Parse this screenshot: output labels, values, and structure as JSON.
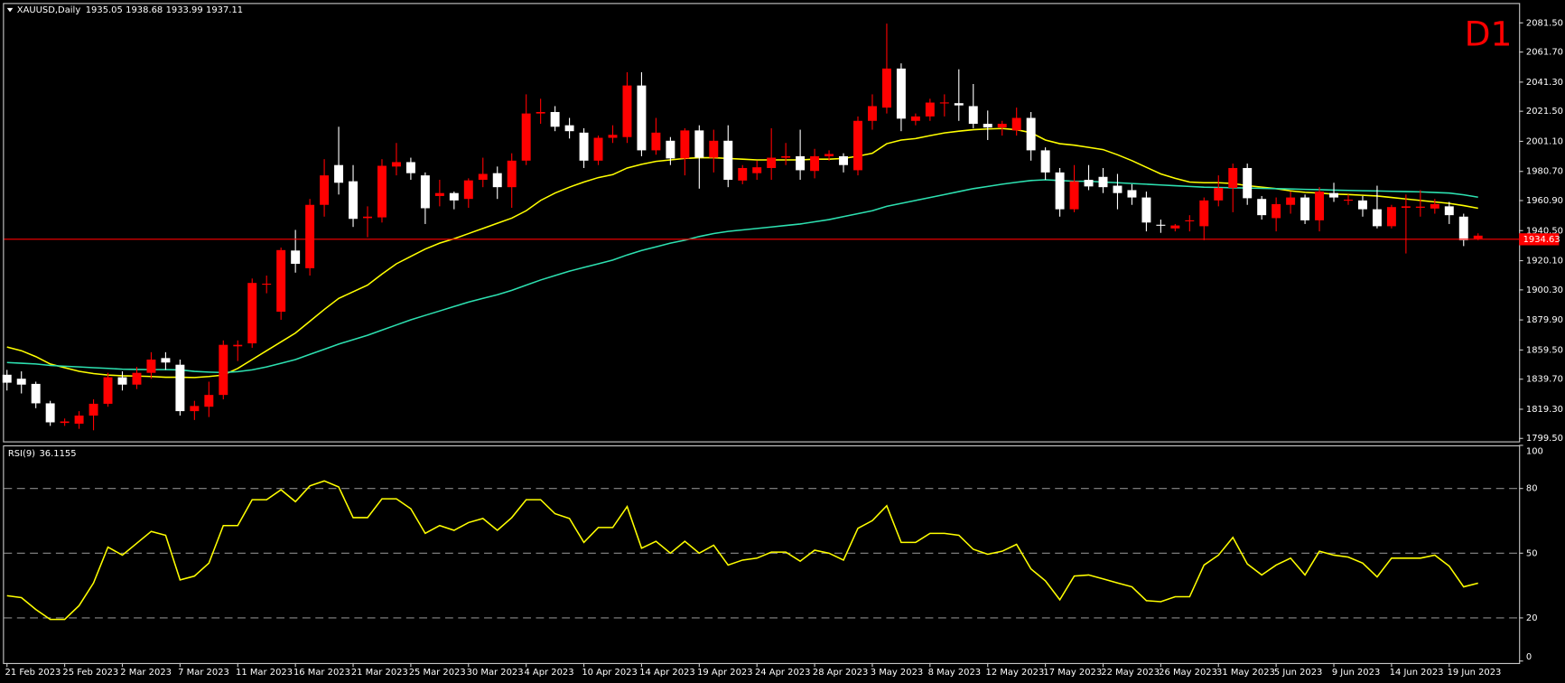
{
  "chart_data": [
    {
      "type": "candlestick",
      "symbol": "XAUUSD,Daily",
      "annotation": "D1",
      "annotation_color": "#ff0000",
      "categories": [
        "21 Feb 2023",
        null,
        null,
        null,
        "25 Feb 2023",
        null,
        null,
        null,
        "2 Mar 2023",
        null,
        null,
        null,
        "7 Mar 2023",
        null,
        null,
        null,
        "11 Mar 2023",
        null,
        null,
        null,
        "16 Mar 2023",
        null,
        null,
        null,
        "21 Mar 2023",
        null,
        null,
        null,
        "25 Mar 2023",
        null,
        null,
        null,
        "30 Mar 2023",
        null,
        null,
        null,
        "4 Apr 2023",
        null,
        null,
        null,
        "10 Apr 2023",
        null,
        null,
        null,
        "14 Apr 2023",
        null,
        null,
        null,
        "19 Apr 2023",
        null,
        null,
        null,
        "24 Apr 2023",
        null,
        null,
        null,
        "28 Apr 2023",
        null,
        null,
        null,
        "3 May 2023",
        null,
        null,
        null,
        "8 May 2023",
        null,
        null,
        null,
        "12 May 2023",
        null,
        null,
        null,
        "17 May 2023",
        null,
        null,
        null,
        "22 May 2023",
        null,
        null,
        null,
        "26 May 2023",
        null,
        null,
        null,
        "31 May 2023",
        null,
        null,
        null,
        "5 Jun 2023",
        null,
        null,
        null,
        "9 Jun 2023",
        null,
        null,
        null,
        "14 Jun 2023",
        null,
        null,
        null,
        "19 Jun 2023",
        null,
        null
      ],
      "open": [
        1842.7,
        1840,
        1836.5,
        1823.3,
        1810,
        1809.5,
        1815,
        1823,
        1841,
        1836,
        1844,
        1854,
        1849.5,
        1818,
        1821,
        1829,
        1862,
        1864,
        1904,
        1885.5,
        1927,
        1915,
        1958,
        1985,
        1974,
        1949,
        1949.5,
        1984,
        1987,
        1978,
        1964,
        1966,
        1962,
        1975,
        1979.5,
        1970,
        1988,
        2020,
        2021,
        2012,
        2007,
        1988,
        2003.5,
        2004,
        2039,
        1995,
        2001.5,
        1989.5,
        2008.5,
        1990,
        2001.5,
        1974.5,
        1979.5,
        1983,
        1990,
        1991,
        1981,
        1991,
        1991,
        1981.5,
        2015,
        2024,
        2050.5,
        2015,
        2018,
        2027,
        2027,
        2025,
        2013,
        2010.5,
        2008.5,
        2017,
        1995,
        1980,
        1955,
        1975,
        1977,
        1971,
        1968,
        1963,
        1944.5,
        1942,
        1947,
        1943.5,
        1961,
        1969.5,
        1983,
        1962,
        1949,
        1958,
        1963,
        1947.5,
        1966,
        1961,
        1961,
        1955,
        1943.5,
        1956,
        1956,
        1955.5,
        1957,
        1950,
        1935.05
      ],
      "high": [
        1846,
        1845,
        1838,
        1825,
        1813,
        1818,
        1826,
        1844,
        1845,
        1848,
        1858,
        1858,
        1853,
        1825,
        1838,
        1866,
        1866,
        1908,
        1910,
        1929,
        1941,
        1962,
        1989,
        2011,
        1985,
        1957,
        1989,
        2000,
        1990,
        1980,
        1975,
        1967,
        1976,
        1990,
        1984,
        1993,
        2033,
        2030,
        2025,
        2017,
        2010,
        2005,
        2012,
        2048,
        2048,
        2017,
        2004,
        2010,
        2012,
        2009,
        2012,
        1985,
        1988,
        2010,
        2000,
        2009,
        1996,
        1995,
        1993,
        2018,
        2033,
        2081,
        2054,
        2020,
        2030,
        2033,
        2050,
        2040,
        2022,
        2015,
        2024,
        2021,
        1997,
        1983,
        1985,
        1985,
        1983,
        1979,
        1972,
        1967,
        1948,
        1945,
        1951,
        1963,
        1978,
        1986,
        1986,
        1964,
        1963,
        1967,
        1965,
        1970,
        1973,
        1965,
        1964,
        1971,
        1958,
        1965,
        1968,
        1962,
        1960,
        1952,
        1938.68
      ],
      "low": [
        1832,
        1830,
        1820,
        1808,
        1808,
        1806,
        1805,
        1821,
        1832,
        1833,
        1840,
        1846,
        1815,
        1812,
        1814,
        1826,
        1852,
        1861,
        1898,
        1880,
        1912,
        1910,
        1950,
        1965,
        1943,
        1936,
        1946,
        1978,
        1975,
        1945,
        1957,
        1955,
        1956,
        1970,
        1962,
        1956,
        1985,
        2013,
        2008,
        2003,
        1983,
        1985,
        2000,
        2000,
        1991,
        1992,
        1985,
        1978,
        1969,
        1980,
        1970,
        1972,
        1975,
        1975,
        1985,
        1975,
        1976,
        1988,
        1980,
        1978,
        2009,
        2020,
        2008,
        2012,
        2015,
        2018,
        2015,
        2010,
        2002,
        2005,
        2005,
        1988,
        1975,
        1950,
        1953,
        1968,
        1966,
        1955,
        1958,
        1940,
        1939,
        1940,
        1940,
        1934,
        1957,
        1953,
        1958,
        1948,
        1940,
        1952,
        1945,
        1940,
        1960,
        1958,
        1950,
        1942,
        1942,
        1925,
        1950,
        1952,
        1945,
        1930,
        1933.99
      ],
      "close": [
        1837.3,
        1836,
        1823.3,
        1810.4,
        1811,
        1815,
        1823,
        1841,
        1836,
        1844,
        1853,
        1851,
        1818,
        1821.5,
        1829,
        1863,
        1863,
        1905,
        1904.5,
        1927.3,
        1918,
        1958,
        1978,
        1973,
        1948.5,
        1950,
        1984.5,
        1987,
        1979.5,
        1955.7,
        1966,
        1961,
        1974.6,
        1979,
        1970,
        1988,
        2020,
        2021,
        2011,
        2008,
        1988,
        2003.5,
        2005.5,
        2039,
        1995,
        2007,
        1989.5,
        2008.5,
        1990,
        2001.5,
        1975,
        1983,
        1983.5,
        1990,
        1991,
        1981.5,
        1991,
        1992.5,
        1985,
        2015,
        2025,
        2050.5,
        2016.5,
        2018,
        2027.4,
        2027.5,
        2025.5,
        2013,
        2010.5,
        2013,
        2017,
        1995,
        1980,
        1955,
        1974,
        1970.5,
        1970,
        1966,
        1963,
        1946,
        1944,
        1944,
        1947.5,
        1961,
        1969.5,
        1983,
        1962.5,
        1951,
        1958.5,
        1963,
        1947.5,
        1967,
        1963,
        1961.5,
        1955,
        1943.5,
        1956.5,
        1957,
        1956.8,
        1958.5,
        1951,
        1934,
        1937.11
      ],
      "up_color": "#ff0000",
      "down_color": "#ffffff",
      "lines": [
        {
          "color": "#ffff00",
          "values": [
            1861.5,
            1859,
            1855,
            1850,
            1847.5,
            1845,
            1843.5,
            1842.5,
            1842,
            1841.8,
            1841.5,
            1841,
            1841,
            1840.8,
            1841.5,
            1842.5,
            1847,
            1853,
            1859,
            1865,
            1871,
            1879,
            1887,
            1894.5,
            1899,
            1903.5,
            1911,
            1918,
            1923,
            1928,
            1932,
            1935,
            1938.5,
            1942,
            1945.5,
            1949,
            1954,
            1961,
            1966,
            1970,
            1973.5,
            1976.5,
            1978.5,
            1983,
            1985.5,
            1987.5,
            1988.5,
            1989.5,
            1990,
            1990,
            1989.5,
            1989,
            1988.5,
            1988.5,
            1988.5,
            1988.5,
            1989,
            1989,
            1989.5,
            1991,
            1993,
            1999.5,
            2002,
            2003,
            2005,
            2006.8,
            2008,
            2009,
            2009.5,
            2009.8,
            2009,
            2007,
            2002,
            1999.5,
            1998.5,
            1997,
            1995.5,
            1992,
            1988,
            1983.5,
            1979,
            1976,
            1973.5,
            1973,
            1973,
            1972.5,
            1971,
            1970,
            1969,
            1967.5,
            1966.5,
            1966,
            1965.3,
            1965,
            1964.5,
            1964,
            1963,
            1962,
            1961,
            1960,
            1959,
            1957.5,
            1955.7
          ]
        },
        {
          "color": "#2de0b0",
          "values": [
            1851,
            1850.5,
            1850,
            1849,
            1848.5,
            1848,
            1847.5,
            1847,
            1846.5,
            1846.3,
            1846.2,
            1846.2,
            1846,
            1845,
            1844.5,
            1844.2,
            1844.8,
            1846,
            1848,
            1850.5,
            1853,
            1856.5,
            1860,
            1863.5,
            1866.5,
            1869.5,
            1873,
            1876.5,
            1880,
            1883,
            1886,
            1889,
            1892,
            1894.5,
            1897,
            1900,
            1903.5,
            1907,
            1910,
            1913,
            1915.5,
            1918,
            1920.5,
            1924,
            1927,
            1929.5,
            1932,
            1934,
            1936.5,
            1938.5,
            1940,
            1941,
            1942,
            1943,
            1944,
            1945,
            1946.5,
            1948,
            1950,
            1952,
            1954,
            1957,
            1959,
            1961,
            1963,
            1965,
            1967,
            1969,
            1970.5,
            1972,
            1973.3,
            1974.5,
            1975,
            1974.5,
            1974,
            1974,
            1973.5,
            1973,
            1972.5,
            1972,
            1971.5,
            1971,
            1970.5,
            1970,
            1969.8,
            1969.6,
            1969.4,
            1969.2,
            1969,
            1968.8,
            1968.5,
            1968.3,
            1968,
            1967.8,
            1967.6,
            1967.4,
            1967.2,
            1967,
            1966.8,
            1966.4,
            1966,
            1964.8,
            1963.2
          ]
        }
      ],
      "price_line": {
        "value": 1934.63,
        "color": "#ff0000"
      },
      "ylim": [
        1797.5,
        2094.3
      ],
      "yticks": [
        {
          "value": 2081.5,
          "label": "2081.50"
        },
        {
          "value": 2061.7,
          "label": "2061.70"
        },
        {
          "value": 2041.3,
          "label": "2041.30"
        },
        {
          "value": 2021.5,
          "label": "2021.50"
        },
        {
          "value": 2001.1,
          "label": "2001.10"
        },
        {
          "value": 1980.7,
          "label": "1980.70"
        },
        {
          "value": 1960.9,
          "label": "1960.90"
        },
        {
          "value": 1940.5,
          "label": "1940.50"
        },
        {
          "value": 1920.1,
          "label": "1920.10"
        },
        {
          "value": 1900.3,
          "label": "1900.30"
        },
        {
          "value": 1879.9,
          "label": "1879.90"
        },
        {
          "value": 1859.5,
          "label": "1859.50"
        },
        {
          "value": 1839.7,
          "label": "1839.70"
        },
        {
          "value": 1819.3,
          "label": "1819.30"
        },
        {
          "value": 1799.5,
          "label": "1799.50"
        }
      ]
    },
    {
      "type": "line",
      "title": "RSI(9)",
      "color": "#ffff00",
      "values": [
        30.3,
        29.4,
        23.9,
        19.3,
        19.3,
        25.7,
        36.2,
        52.8,
        49.1,
        54.6,
        60.1,
        58.3,
        37.6,
        39.4,
        45.4,
        62.8,
        62.8,
        74.8,
        74.8,
        79.4,
        73.9,
        81.2,
        83.5,
        80.7,
        66.5,
        66.5,
        75.2,
        75.2,
        70.6,
        59.2,
        62.8,
        60.6,
        64.2,
        66.1,
        60.6,
        66.5,
        74.8,
        74.8,
        68.3,
        66.1,
        55,
        61.9,
        61.9,
        71.6,
        52.3,
        55.5,
        50,
        55.5,
        50,
        53.7,
        44.5,
        46.8,
        47.7,
        50.5,
        50.5,
        46.3,
        51.4,
        50,
        46.8,
        61.5,
        65.1,
        72,
        55,
        55,
        59.2,
        59.2,
        58.3,
        51.8,
        49.5,
        50.9,
        54.1,
        42.7,
        37.2,
        28.4,
        39.4,
        39.9,
        38.1,
        36.2,
        34.4,
        28,
        27.5,
        29.8,
        29.8,
        44.5,
        49.1,
        57.3,
        45,
        39.9,
        44.5,
        47.7,
        39.9,
        50.9,
        49.1,
        48.2,
        45.4,
        39,
        47.7,
        47.7,
        47.7,
        49.1,
        44,
        34.4,
        36.1155
      ],
      "ylim": [
        0,
        100
      ],
      "yticks": [
        0,
        20,
        50,
        80,
        100
      ],
      "grid": "dashed"
    }
  ]
}
